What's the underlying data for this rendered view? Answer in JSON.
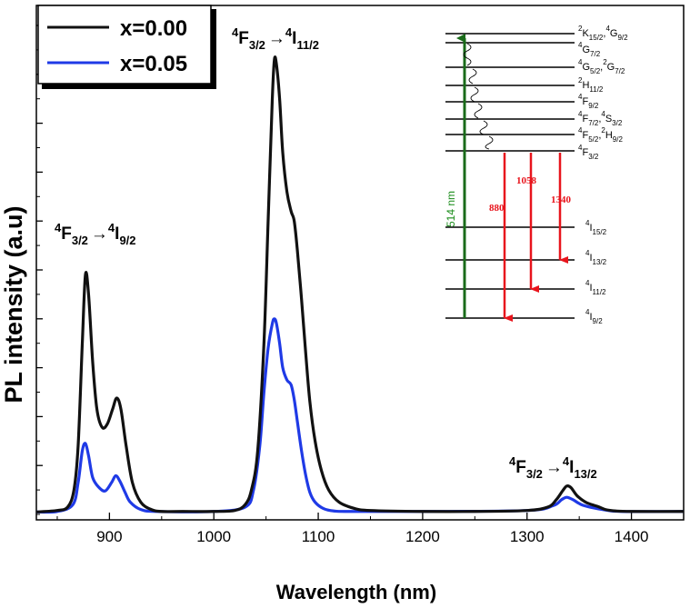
{
  "chart_data": {
    "type": "line",
    "xlabel": "Wavelength (nm)",
    "ylabel": "PL intensity (a.u)",
    "xlim": [
      830,
      1450
    ],
    "ylim": [
      0,
      1.0
    ],
    "x_ticks": [
      900,
      1000,
      1100,
      1200,
      1300,
      1400
    ],
    "legend_position": "top-left",
    "series": [
      {
        "name": "x=0.00",
        "color": "#111111",
        "x": [
          830,
          850,
          860,
          866,
          870,
          874,
          877,
          880,
          884,
          888,
          893,
          898,
          903,
          907,
          911,
          916,
          922,
          930,
          940,
          950,
          970,
          1000,
          1020,
          1030,
          1036,
          1042,
          1048,
          1052,
          1056,
          1058,
          1060,
          1063,
          1066,
          1070,
          1074,
          1077,
          1080,
          1084,
          1088,
          1092,
          1097,
          1103,
          1110,
          1120,
          1135,
          1150,
          1200,
          1250,
          1300,
          1320,
          1328,
          1334,
          1338,
          1342,
          1348,
          1356,
          1362,
          1368,
          1375,
          1385,
          1400,
          1450
        ],
        "y": [
          0.005,
          0.008,
          0.015,
          0.05,
          0.14,
          0.35,
          0.49,
          0.45,
          0.31,
          0.215,
          0.178,
          0.185,
          0.215,
          0.238,
          0.215,
          0.14,
          0.065,
          0.025,
          0.01,
          0.006,
          0.006,
          0.006,
          0.008,
          0.02,
          0.05,
          0.13,
          0.35,
          0.6,
          0.85,
          0.93,
          0.92,
          0.85,
          0.74,
          0.66,
          0.62,
          0.6,
          0.54,
          0.44,
          0.33,
          0.23,
          0.15,
          0.09,
          0.05,
          0.025,
          0.012,
          0.008,
          0.006,
          0.006,
          0.008,
          0.015,
          0.03,
          0.048,
          0.058,
          0.055,
          0.038,
          0.025,
          0.02,
          0.016,
          0.01,
          0.007,
          0.006,
          0.006
        ]
      },
      {
        "name": "x=0.05",
        "color": "#1f3ae6",
        "x": [
          830,
          850,
          865,
          870,
          874,
          877,
          880,
          884,
          890,
          896,
          902,
          906,
          910,
          915,
          920,
          930,
          945,
          1000,
          1030,
          1038,
          1044,
          1048,
          1052,
          1056,
          1058,
          1060,
          1063,
          1066,
          1070,
          1074,
          1077,
          1080,
          1084,
          1088,
          1092,
          1097,
          1105,
          1115,
          1130,
          1200,
          1300,
          1325,
          1333,
          1338,
          1344,
          1352,
          1362,
          1375,
          1390,
          1450
        ],
        "y": [
          0.005,
          0.006,
          0.02,
          0.065,
          0.13,
          0.145,
          0.12,
          0.075,
          0.055,
          0.048,
          0.065,
          0.079,
          0.068,
          0.045,
          0.025,
          0.01,
          0.006,
          0.006,
          0.015,
          0.05,
          0.14,
          0.25,
          0.34,
          0.39,
          0.4,
          0.39,
          0.35,
          0.3,
          0.275,
          0.265,
          0.235,
          0.19,
          0.13,
          0.08,
          0.045,
          0.025,
          0.012,
          0.007,
          0.006,
          0.006,
          0.008,
          0.018,
          0.03,
          0.035,
          0.03,
          0.02,
          0.014,
          0.009,
          0.006,
          0.006
        ]
      }
    ],
    "annotations": [
      {
        "text": "4F3/2 → 4I9/2",
        "at_wavelength": 877
      },
      {
        "text": "4F3/2 → 4I11/2",
        "at_wavelength": 1058
      },
      {
        "text": "4F3/2 → 4I13/2",
        "at_wavelength": 1338
      }
    ]
  },
  "annotations": {
    "peak1": {
      "up1": "4",
      "main1": "F",
      "sub1": "3/2",
      "arrow": "→",
      "up2": "4",
      "main2": "I",
      "sub2": "9/2"
    },
    "peak2": {
      "up1": "4",
      "main1": "F",
      "sub1": "3/2",
      "arrow": "→",
      "up2": "4",
      "main2": "I",
      "sub2": "11/2"
    },
    "peak3": {
      "up1": "4",
      "main1": "F",
      "sub1": "3/2",
      "arrow": "→",
      "up2": "4",
      "main2": "I",
      "sub2": "13/2"
    }
  },
  "inset": {
    "pump_label": "514 nm",
    "emissions": [
      "880",
      "1058",
      "1340"
    ],
    "pump_color": "#1a8c1a",
    "emission_color": "#e8141c",
    "levels": {
      "l1": {
        "a": "2",
        "b": "K",
        "c": "15/2",
        "d": ",",
        "e": "4",
        "f": "G",
        "g": "9/2"
      },
      "l2": {
        "a": "4",
        "b": "G",
        "c": "7/2"
      },
      "l3": {
        "a": "4",
        "b": "G",
        "c": "5/2",
        "d": ",",
        "e": "2",
        "f": "G",
        "g": "7/2"
      },
      "l4": {
        "a": "2",
        "b": "H",
        "c": "11/2"
      },
      "l5": {
        "a": "4",
        "b": "F",
        "c": "9/2"
      },
      "l6": {
        "a": "4",
        "b": "F",
        "c": "7/2",
        "d": ",",
        "e": "4",
        "f": "S",
        "g": "3/2"
      },
      "l7": {
        "a": "4",
        "b": "F",
        "c": "5/2",
        "d": ",",
        "e": "2",
        "f": "H",
        "g": "9/2"
      },
      "l8": {
        "a": "4",
        "b": "F",
        "c": "3/2"
      },
      "l9": {
        "a": "4",
        "b": "I",
        "c": "15/2"
      },
      "l10": {
        "a": "4",
        "b": "I",
        "c": "13/2"
      },
      "l11": {
        "a": "4",
        "b": "I",
        "c": "11/2"
      },
      "l12": {
        "a": "4",
        "b": "I",
        "c": "9/2"
      }
    }
  }
}
